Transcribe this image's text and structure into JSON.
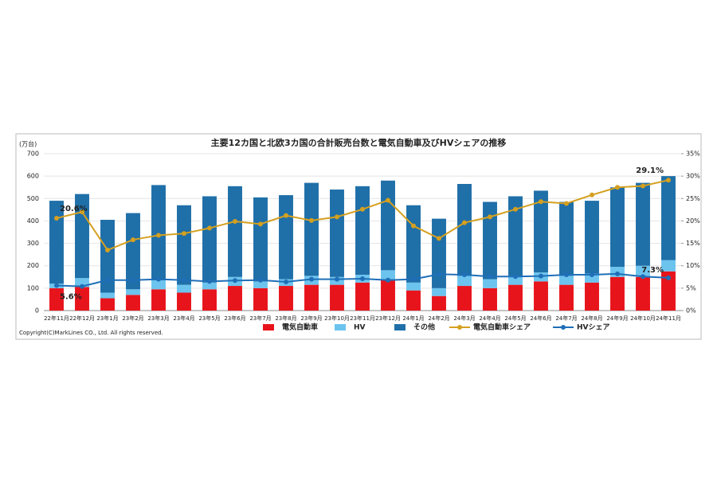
{
  "chart_data": {
    "type": "bar",
    "title": "主要12カ国と北欧3カ国の合計販売台数と電気自動車及びHVシェアの推移",
    "y_label": "(万台)",
    "copyright": "Copyright(C)MarkLines CO., Ltd. All rights reserved.",
    "categories": [
      "22年11月",
      "22年12月",
      "23年1月",
      "23年2月",
      "23年3月",
      "23年4月",
      "23年5月",
      "23年6月",
      "23年7月",
      "23年8月",
      "23年9月",
      "23年10月",
      "23年11月",
      "23年12月",
      "24年1月",
      "24年2月",
      "24年3月",
      "24年4月",
      "24年5月",
      "24年6月",
      "24年7月",
      "24年8月",
      "24年9月",
      "24年10月",
      "24年11月"
    ],
    "ylim": [
      0,
      700
    ],
    "yticks": [
      0,
      100,
      200,
      300,
      400,
      500,
      600,
      700
    ],
    "y2lim": [
      0,
      35
    ],
    "y2ticks": [
      {
        "value": 0,
        "label": "0%"
      },
      {
        "value": 5,
        "label": "5%"
      },
      {
        "value": 10,
        "label": "10%"
      },
      {
        "value": 15,
        "label": "15%"
      },
      {
        "value": 20,
        "label": "20%"
      },
      {
        "value": 25,
        "label": "25%"
      },
      {
        "value": 30,
        "label": "30%"
      },
      {
        "value": 35,
        "label": "35%"
      }
    ],
    "series": [
      {
        "name": "電気自動車",
        "type": "bar",
        "color": "#e8141c",
        "values": [
          100,
          105,
          55,
          70,
          95,
          80,
          95,
          110,
          100,
          110,
          115,
          115,
          125,
          140,
          90,
          65,
          110,
          100,
          115,
          130,
          115,
          125,
          150,
          150,
          175
        ]
      },
      {
        "name": "HV",
        "type": "bar",
        "color": "#6cc4ee",
        "values": [
          20,
          40,
          25,
          25,
          40,
          35,
          30,
          40,
          30,
          30,
          40,
          35,
          35,
          40,
          35,
          35,
          45,
          40,
          40,
          40,
          40,
          40,
          45,
          50,
          50
        ]
      },
      {
        "name": "その他",
        "type": "bar",
        "color": "#1f6fa8",
        "values": [
          370,
          375,
          325,
          340,
          425,
          355,
          385,
          405,
          375,
          375,
          415,
          390,
          395,
          400,
          345,
          310,
          410,
          345,
          355,
          365,
          330,
          325,
          355,
          370,
          375
        ]
      },
      {
        "name": "電気自動車シェア",
        "type": "line",
        "axis": "y2",
        "color": "#d4a020",
        "values": [
          20.6,
          22.0,
          13.5,
          15.8,
          16.8,
          17.2,
          18.4,
          19.9,
          19.3,
          21.2,
          20.1,
          20.9,
          22.6,
          24.6,
          18.9,
          16.1,
          19.6,
          20.9,
          22.6,
          24.3,
          23.9,
          25.8,
          27.5,
          27.8,
          29.1
        ],
        "value_labels": [
          "20.6%",
          null,
          null,
          null,
          null,
          null,
          null,
          null,
          null,
          null,
          null,
          null,
          null,
          null,
          null,
          null,
          null,
          null,
          null,
          null,
          null,
          null,
          null,
          null,
          "29.1%"
        ]
      },
      {
        "name": "HVシェア",
        "type": "line",
        "axis": "y2",
        "color": "#1f6fb8",
        "values": [
          5.6,
          5.4,
          6.8,
          6.8,
          7.0,
          6.8,
          6.5,
          6.7,
          6.8,
          6.4,
          7.0,
          7.0,
          7.1,
          6.8,
          7.0,
          8.1,
          8.0,
          7.6,
          7.6,
          7.7,
          8.0,
          8.0,
          8.2,
          7.6,
          7.3
        ],
        "value_labels": [
          "5.6%",
          null,
          null,
          null,
          null,
          null,
          null,
          null,
          null,
          null,
          null,
          null,
          null,
          null,
          null,
          null,
          null,
          null,
          null,
          null,
          null,
          null,
          null,
          null,
          "7.3%"
        ]
      }
    ]
  }
}
